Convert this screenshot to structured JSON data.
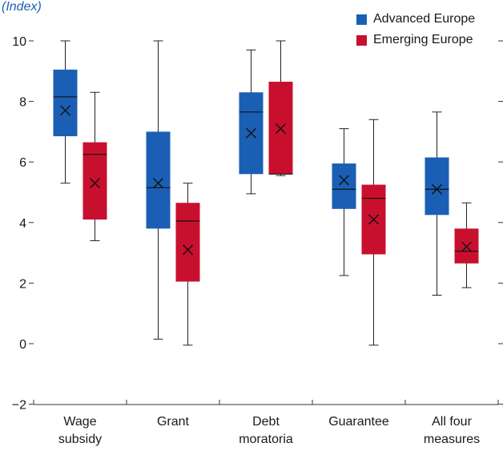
{
  "chart_data": {
    "type": "box",
    "unit_label": "(Index)",
    "categories": [
      [
        "Wage",
        "subsidy"
      ],
      [
        "Grant"
      ],
      [
        "Debt",
        "moratoria"
      ],
      [
        "Guarantee"
      ],
      [
        "All four",
        "measures"
      ]
    ],
    "ylim": [
      -2,
      10.5
    ],
    "yticks": [
      -2,
      0,
      2,
      4,
      6,
      8,
      10
    ],
    "ytick_labels": [
      "−2",
      "0",
      "2",
      "4",
      "6",
      "8",
      "10"
    ],
    "legend_position": "top-right",
    "series": [
      {
        "name": "Advanced Europe",
        "color": "#1a5fb4",
        "boxes": [
          {
            "min": 5.3,
            "q1": 6.85,
            "median": 8.15,
            "q3": 9.05,
            "max": 10.0,
            "mean": 7.7
          },
          {
            "min": 0.15,
            "q1": 3.8,
            "median": 5.15,
            "q3": 7.0,
            "max": 10.0,
            "mean": 5.3
          },
          {
            "min": 4.95,
            "q1": 5.6,
            "median": 7.65,
            "q3": 8.3,
            "max": 9.7,
            "mean": 6.95
          },
          {
            "min": 2.25,
            "q1": 4.45,
            "median": 5.1,
            "q3": 5.95,
            "max": 7.1,
            "mean": 5.4
          },
          {
            "min": 1.6,
            "q1": 4.25,
            "median": 5.1,
            "q3": 6.15,
            "max": 7.65,
            "mean": 5.1
          }
        ]
      },
      {
        "name": "Emerging Europe",
        "color": "#c8102e",
        "boxes": [
          {
            "min": 3.4,
            "q1": 4.1,
            "median": 6.25,
            "q3": 6.65,
            "max": 8.3,
            "mean": 5.3
          },
          {
            "min": -0.05,
            "q1": 2.05,
            "median": 4.05,
            "q3": 4.65,
            "max": 5.3,
            "mean": 3.1
          },
          {
            "min": 5.55,
            "q1": 5.6,
            "median": 5.6,
            "q3": 8.65,
            "max": 10.0,
            "mean": 7.1
          },
          {
            "min": -0.05,
            "q1": 2.95,
            "median": 4.8,
            "q3": 5.25,
            "max": 7.4,
            "mean": 4.1
          },
          {
            "min": 1.85,
            "q1": 2.65,
            "median": 3.05,
            "q3": 3.8,
            "max": 4.65,
            "mean": 3.2
          }
        ]
      }
    ]
  }
}
